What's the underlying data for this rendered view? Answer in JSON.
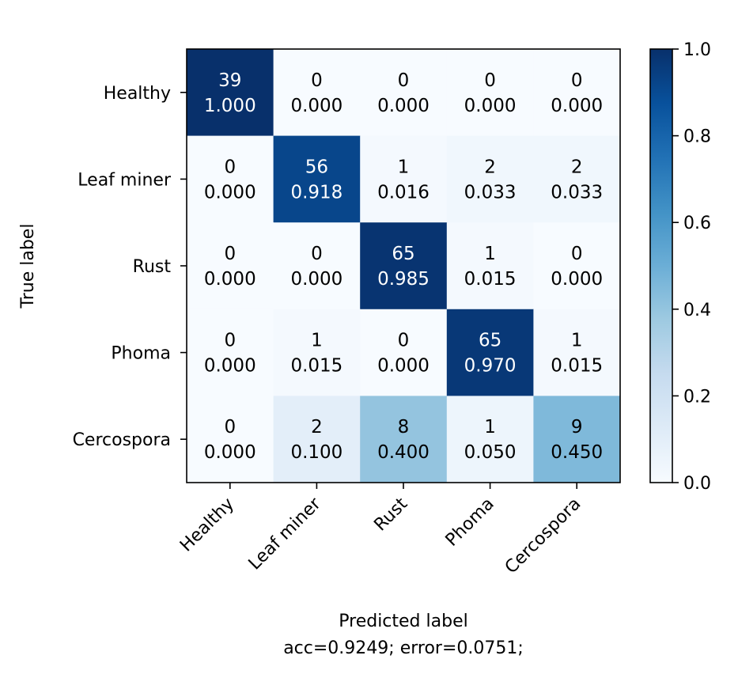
{
  "chart_data": {
    "type": "heatmap",
    "subtype": "confusion-matrix",
    "row_labels": [
      "Healthy",
      "Leaf miner",
      "Rust",
      "Phoma",
      "Cercospora"
    ],
    "col_labels": [
      "Healthy",
      "Leaf miner",
      "Rust",
      "Phoma",
      "Cercospora"
    ],
    "counts": [
      [
        39,
        0,
        0,
        0,
        0
      ],
      [
        0,
        56,
        1,
        2,
        2
      ],
      [
        0,
        0,
        65,
        1,
        0
      ],
      [
        0,
        1,
        0,
        65,
        1
      ],
      [
        0,
        2,
        8,
        1,
        9
      ]
    ],
    "normalized": [
      [
        "1.000",
        "0.000",
        "0.000",
        "0.000",
        "0.000"
      ],
      [
        "0.000",
        "0.918",
        "0.016",
        "0.033",
        "0.033"
      ],
      [
        "0.000",
        "0.000",
        "0.985",
        "0.015",
        "0.000"
      ],
      [
        "0.000",
        "0.015",
        "0.000",
        "0.970",
        "0.015"
      ],
      [
        "0.000",
        "0.100",
        "0.400",
        "0.050",
        "0.450"
      ]
    ],
    "xlabel": "Predicted label",
    "xlabel_sub": "acc=0.9249; error=0.0751;",
    "ylabel": "True label",
    "colormap": "Blues",
    "colorbar": {
      "range": [
        0.0,
        1.0
      ],
      "ticks": [
        "0.0",
        "0.2",
        "0.4",
        "0.6",
        "0.8",
        "1.0"
      ]
    },
    "x_tick_rotation_deg": 45
  }
}
